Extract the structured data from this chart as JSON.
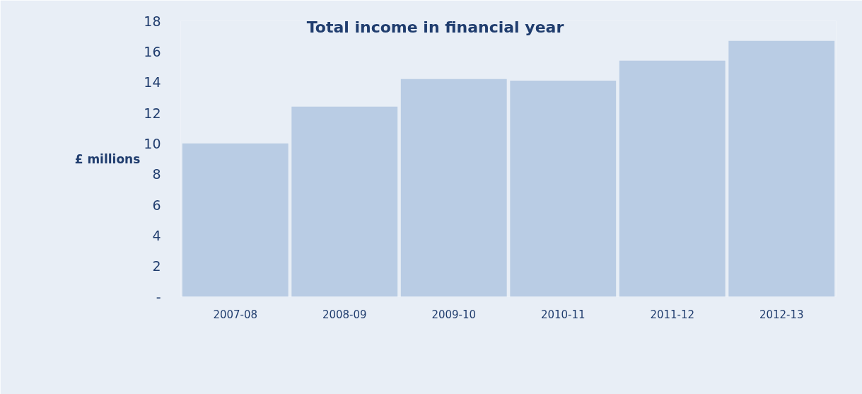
{
  "chart_data": {
    "type": "bar",
    "title": "Total income in financial year",
    "ylabel": "£ millions",
    "categories": [
      "2007-08",
      "2008-09",
      "2009-10",
      "2010-11",
      "2011-12",
      "2012-13"
    ],
    "values": [
      10.0,
      12.4,
      14.2,
      14.1,
      15.4,
      16.7
    ],
    "color": "#b9cce4",
    "ylim": [
      0,
      18
    ],
    "yticks": [
      {
        "value": 0,
        "label": "-"
      },
      2,
      4,
      6,
      8,
      10,
      12,
      14,
      16,
      18
    ],
    "grid": false
  }
}
